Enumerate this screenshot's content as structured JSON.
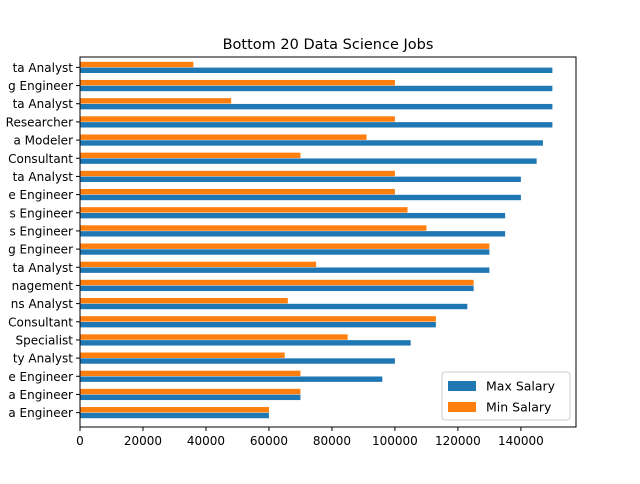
{
  "chart_data": {
    "type": "bar",
    "orientation": "horizontal",
    "title": "Bottom 20 Data Science Jobs",
    "categories": [
      "ta Analyst",
      "g Engineer",
      "ta Analyst",
      "Researcher",
      "a Modeler",
      "Consultant",
      "ta Analyst",
      "e Engineer",
      "s Engineer",
      "s Engineer",
      "g Engineer",
      "ta Analyst",
      "nagement",
      "ns Analyst",
      "Consultant",
      "Specialist",
      "ty Analyst",
      "e Engineer",
      "a Engineer",
      "a Engineer"
    ],
    "series": [
      {
        "name": "Max Salary",
        "color": "#1f77b4",
        "values": [
          150000,
          150000,
          150000,
          150000,
          147000,
          145000,
          140000,
          140000,
          135000,
          135000,
          130000,
          130000,
          125000,
          123000,
          113000,
          105000,
          100000,
          96000,
          70000,
          60000
        ]
      },
      {
        "name": "Min Salary",
        "color": "#ff7f0e",
        "values": [
          36000,
          100000,
          48000,
          100000,
          91000,
          70000,
          100000,
          100000,
          104000,
          110000,
          130000,
          75000,
          125000,
          66000,
          113000,
          85000,
          65000,
          70000,
          70000,
          60000
        ]
      }
    ],
    "xlim": [
      0,
      157500
    ],
    "xticks": [
      0,
      20000,
      40000,
      60000,
      80000,
      100000,
      120000,
      140000
    ],
    "xtick_labels": [
      "0",
      "20000",
      "40000",
      "60000",
      "80000",
      "100000",
      "120000",
      "140000"
    ],
    "grid": false,
    "legend_position": "bottom-right"
  }
}
